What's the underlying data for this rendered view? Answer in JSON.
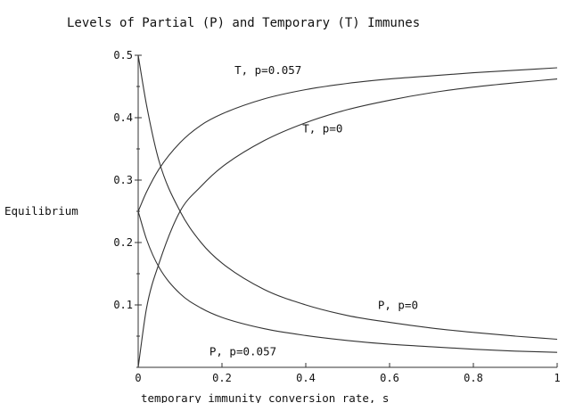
{
  "chart_data": {
    "type": "line",
    "title": "Levels of Partial (P) and Temporary (T) Immunes",
    "xlabel": "temporary immunity conversion rate, s",
    "ylabel": "Equilibrium",
    "xlim": [
      0,
      1
    ],
    "ylim": [
      0,
      0.5
    ],
    "xticks": [
      "0",
      "0.2",
      "0.4",
      "0.6",
      "0.8",
      "1"
    ],
    "yticks": [
      "0",
      "0.1",
      "0.2",
      "0.3",
      "0.4",
      "0.5"
    ],
    "grid": false,
    "line_color": "#333333",
    "series": [
      {
        "name": "T, p=0.057",
        "x": [
          0,
          0.02,
          0.05,
          0.1,
          0.15,
          0.2,
          0.3,
          0.4,
          0.5,
          0.6,
          0.7,
          0.8,
          0.9,
          1.0
        ],
        "y": [
          0.25,
          0.281,
          0.318,
          0.36,
          0.388,
          0.406,
          0.43,
          0.445,
          0.455,
          0.462,
          0.467,
          0.472,
          0.476,
          0.48
        ]
      },
      {
        "name": "T, p=0",
        "x": [
          0,
          0.02,
          0.05,
          0.1,
          0.15,
          0.2,
          0.3,
          0.4,
          0.5,
          0.6,
          0.7,
          0.8,
          0.9,
          1.0
        ],
        "y": [
          0.0,
          0.095,
          0.167,
          0.25,
          0.29,
          0.321,
          0.363,
          0.392,
          0.413,
          0.428,
          0.44,
          0.449,
          0.456,
          0.462
        ]
      },
      {
        "name": "P, p=0",
        "x": [
          0,
          0.02,
          0.05,
          0.1,
          0.15,
          0.2,
          0.3,
          0.4,
          0.5,
          0.6,
          0.7,
          0.8,
          0.9,
          1.0
        ],
        "y": [
          0.5,
          0.42,
          0.33,
          0.25,
          0.2,
          0.167,
          0.125,
          0.1,
          0.083,
          0.072,
          0.063,
          0.056,
          0.05,
          0.045
        ]
      },
      {
        "name": "P, p=0.057",
        "x": [
          0,
          0.02,
          0.05,
          0.1,
          0.15,
          0.2,
          0.3,
          0.4,
          0.5,
          0.6,
          0.7,
          0.8,
          0.9,
          1.0
        ],
        "y": [
          0.25,
          0.205,
          0.16,
          0.118,
          0.095,
          0.08,
          0.062,
          0.051,
          0.043,
          0.037,
          0.033,
          0.029,
          0.026,
          0.024
        ]
      }
    ]
  }
}
